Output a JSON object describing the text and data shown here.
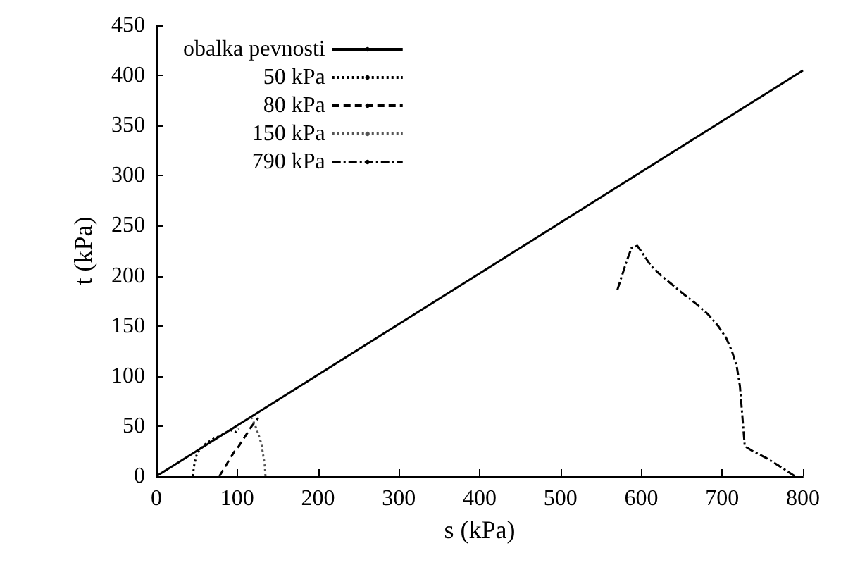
{
  "chart_data": {
    "type": "line",
    "xlabel": "s (kPa)",
    "ylabel": "t (kPa)",
    "xlim": [
      0,
      800
    ],
    "xticks": [
      0,
      100,
      200,
      300,
      400,
      500,
      600,
      700,
      800
    ],
    "ylim": [
      0,
      450
    ],
    "yticks": [
      0,
      50,
      100,
      150,
      200,
      250,
      300,
      350,
      400,
      450
    ],
    "grid": false,
    "legend": "top left",
    "marker": "none",
    "series": [
      {
        "name": "obalka pevnosti",
        "color": "#000000",
        "line_style": "solid",
        "x": [
          0,
          800
        ],
        "values": [
          0,
          405
        ]
      },
      {
        "name": "50 kPa",
        "color": "#000000",
        "line_style": "dotted",
        "x": [
          45,
          47,
          50,
          55,
          62,
          70,
          78,
          85,
          92,
          98,
          102
        ],
        "values": [
          0,
          12,
          22,
          28,
          33,
          37,
          40,
          43,
          46,
          44,
          47
        ]
      },
      {
        "name": "80 kPa",
        "color": "#000000",
        "line_style": "dashed",
        "x": [
          78,
          84,
          90,
          96,
          102,
          106,
          110,
          114,
          118,
          122,
          126
        ],
        "values": [
          0,
          8,
          16,
          24,
          30,
          35,
          40,
          45,
          50,
          54,
          58
        ]
      },
      {
        "name": "150 kPa",
        "color": "#555555",
        "line_style": "dotted",
        "x": [
          135,
          134,
          132,
          130,
          127,
          124,
          121,
          118
        ],
        "values": [
          0,
          12,
          22,
          32,
          40,
          47,
          53,
          58
        ]
      },
      {
        "name": "790 kPa",
        "color": "#000000",
        "line_style": "dashdot",
        "x": [
          790,
          775,
          755,
          738,
          728,
          726,
          724,
          722,
          718,
          712,
          705,
          695,
          682,
          668,
          655,
          640,
          625,
          612,
          602,
          595,
          588,
          582,
          576,
          570
        ],
        "values": [
          0,
          8,
          18,
          25,
          30,
          50,
          70,
          90,
          110,
          125,
          138,
          150,
          162,
          172,
          180,
          190,
          200,
          210,
          222,
          230,
          228,
          215,
          200,
          185
        ]
      }
    ]
  }
}
